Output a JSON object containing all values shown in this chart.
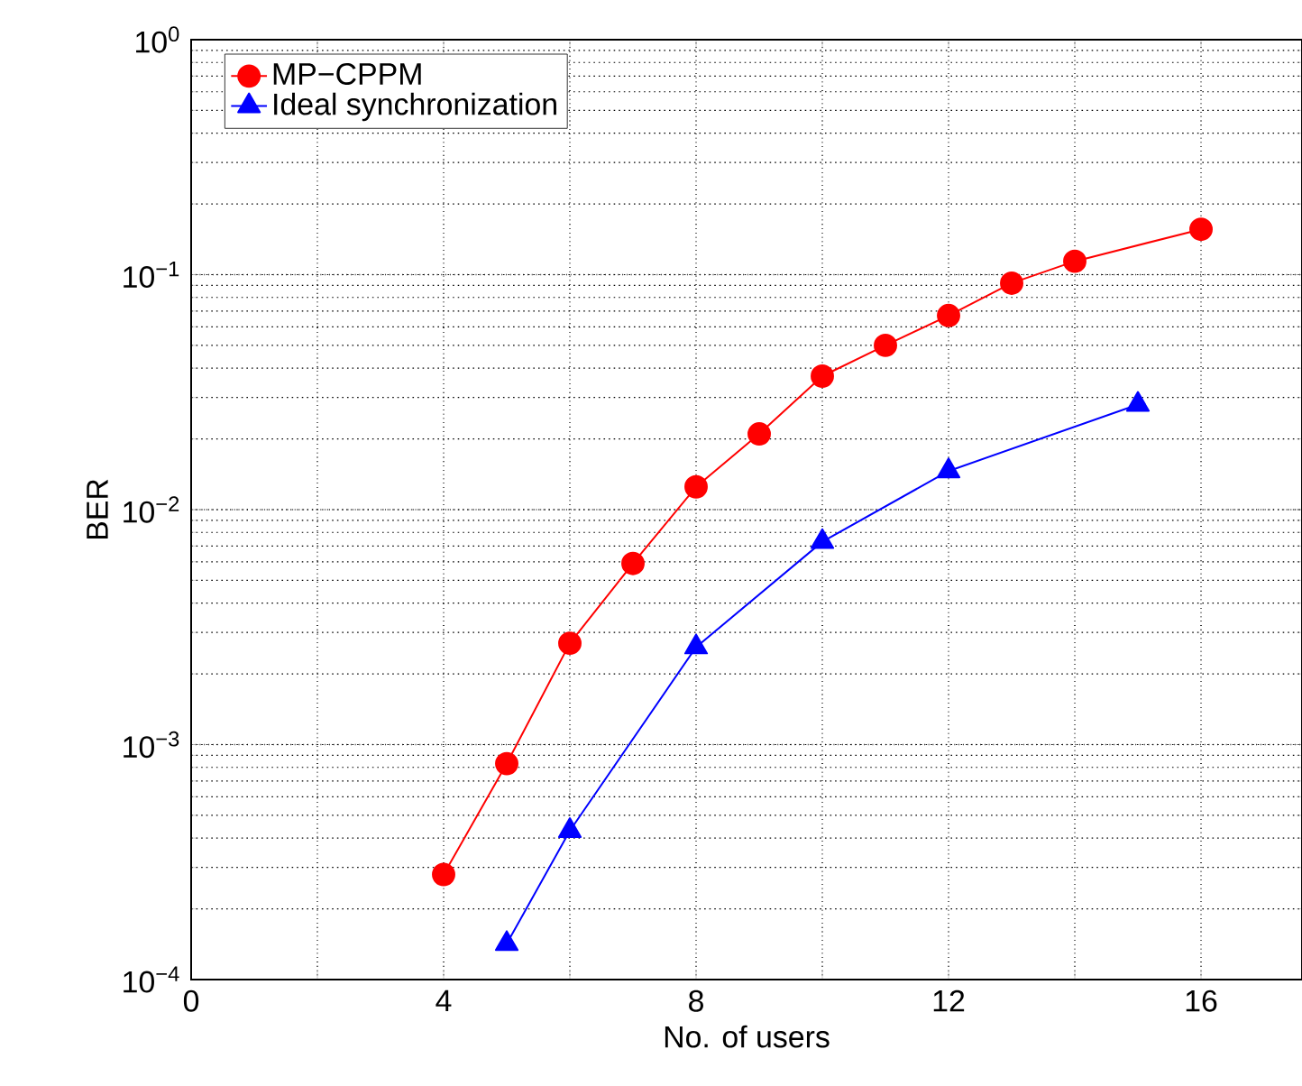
{
  "chart_data": {
    "type": "line",
    "xlabel": "No. of users",
    "ylabel": "BER",
    "log": "y",
    "grid": true,
    "legend": "top left",
    "line_style": "solid",
    "xlim": [
      0,
      17.6
    ],
    "ylim": [
      0.0001,
      1
    ],
    "xticks": [
      0,
      {
        "value": 2,
        "label": null
      },
      4,
      {
        "value": 6,
        "label": null
      },
      8,
      {
        "value": 10,
        "label": null
      },
      12,
      {
        "value": 14,
        "label": null
      },
      16
    ],
    "yticks": [
      {
        "value": 0.0001,
        "label": "10$^{−4}$"
      },
      {
        "value": 0.001,
        "label": "10$^{−3}$"
      },
      {
        "value": 0.01,
        "label": "10$^{−2}$"
      },
      {
        "value": 0.1,
        "label": "10$^{−1}$"
      },
      {
        "value": 1,
        "label": "10$^{0}$"
      }
    ],
    "series": [
      {
        "name": "MP−CPPM",
        "color": "#ff0000",
        "marker": "circle",
        "x": [
          4,
          5,
          6,
          7,
          8,
          9,
          10,
          11,
          12,
          13,
          14,
          16
        ],
        "values": [
          0.00028,
          0.00083,
          0.0027,
          0.0059,
          0.0125,
          0.021,
          0.037,
          0.05,
          0.067,
          0.092,
          0.114,
          0.156
        ]
      },
      {
        "name": "Ideal synchronization",
        "color": "#0000ff",
        "marker": "triangle",
        "x": [
          5,
          6,
          8,
          10,
          12,
          15
        ],
        "values": [
          0.000142,
          0.00043,
          0.0026,
          0.0073,
          0.0146,
          0.028
        ]
      }
    ]
  }
}
